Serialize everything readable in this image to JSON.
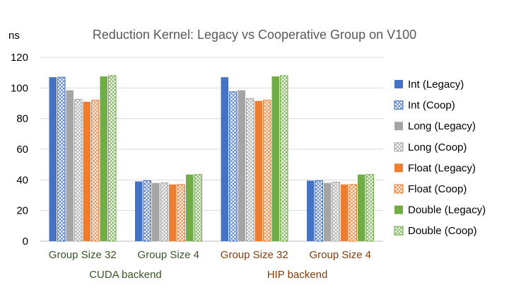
{
  "chart_data": {
    "type": "bar",
    "title": "Reduction Kernel: Legacy vs Cooperative Group on V100",
    "ylabel": "ns",
    "xlabel": "",
    "ylim": [
      0,
      120
    ],
    "yticks": [
      0,
      20,
      40,
      60,
      80,
      100,
      120
    ],
    "grid": true,
    "legend_position": "right",
    "categories": [
      "Group Size 32",
      "Group Size 4",
      "Group Size 32",
      "Group Size 4"
    ],
    "groups": [
      {
        "label": "CUDA backend",
        "color": "#375623"
      },
      {
        "label": "HIP backend",
        "color": "#843C0C"
      }
    ],
    "series": [
      {
        "name": "Int (Legacy)",
        "color": "#4472C4",
        "fill": "solid",
        "values": [
          107,
          39,
          107,
          39.5
        ]
      },
      {
        "name": "Int (Coop)",
        "color": "#4472C4",
        "fill": "hatched",
        "values": [
          107,
          39.5,
          97.5,
          39.5
        ]
      },
      {
        "name": "Long (Legacy)",
        "color": "#A5A5A5",
        "fill": "solid",
        "values": [
          98.5,
          38,
          98.5,
          38
        ]
      },
      {
        "name": "Long (Coop)",
        "color": "#A5A5A5",
        "fill": "hatched",
        "values": [
          92.5,
          38,
          93,
          38.5
        ]
      },
      {
        "name": "Float (Legacy)",
        "color": "#ED7D31",
        "fill": "solid",
        "values": [
          91,
          37,
          91.5,
          37
        ]
      },
      {
        "name": "Float (Coop)",
        "color": "#ED7D31",
        "fill": "hatched",
        "values": [
          92,
          37,
          92,
          37
        ]
      },
      {
        "name": "Double (Legacy)",
        "color": "#70AD47",
        "fill": "solid",
        "values": [
          107.5,
          43.5,
          107.5,
          43.5
        ]
      },
      {
        "name": "Double (Coop)",
        "color": "#70AD47",
        "fill": "hatched",
        "values": [
          108,
          43.5,
          108,
          43.5
        ]
      }
    ]
  }
}
